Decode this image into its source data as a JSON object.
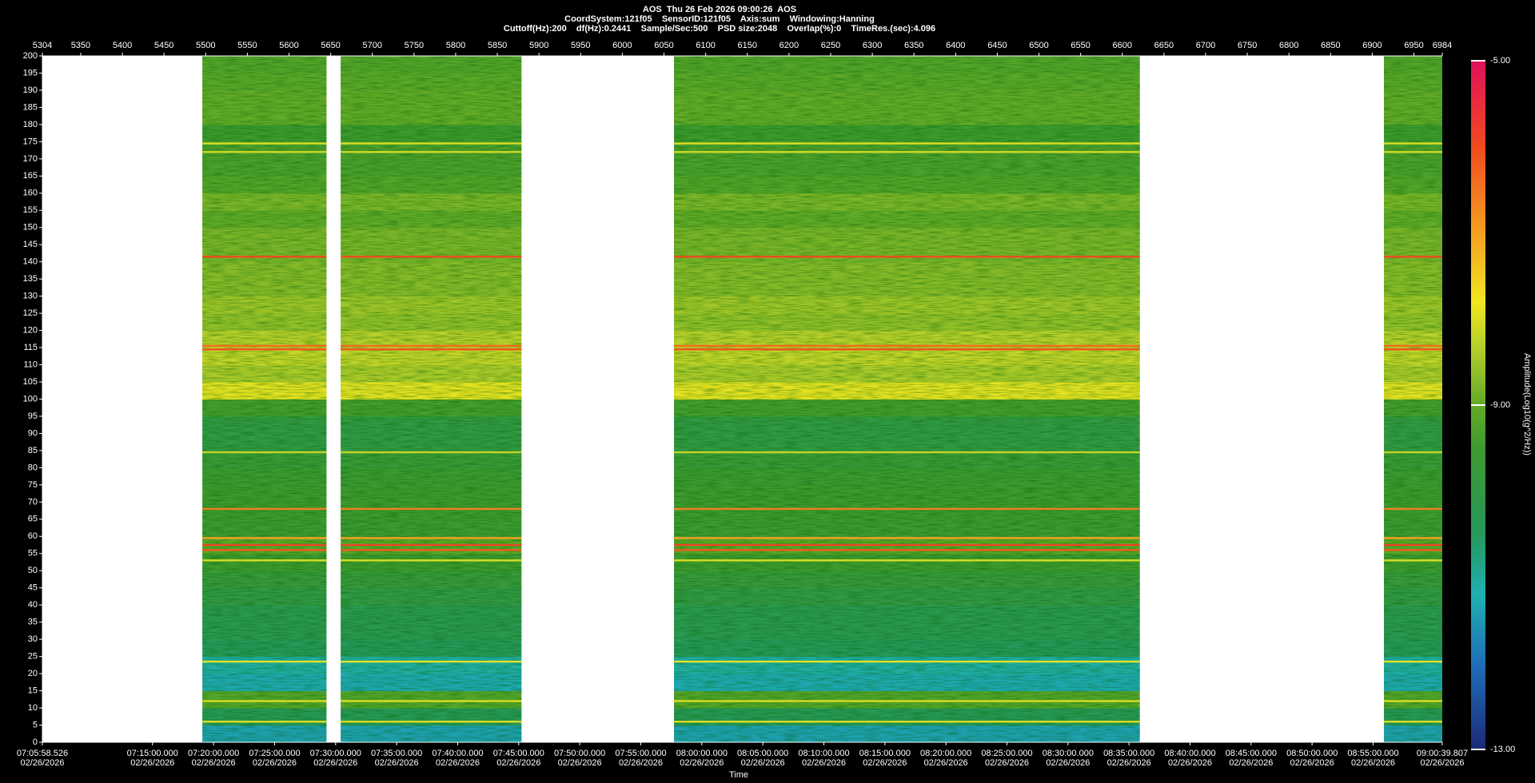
{
  "chart_data": {
    "type": "spectrogram",
    "title": "AOS  Thu 26 Feb 2026 09:00:26  AOS",
    "subtitle": "CoordSystem:121f05    SensorID:121f05    Axis:sum    Windowing:Hanning",
    "info": "Cuttoff(Hz):200    df(Hz):0.2441    Sample/Sec:500    PSD size:2048    Overlap(%):0    TimeRes.(sec):4.096",
    "xlabel": "Time",
    "colorbar_label": "Amplitude(Log10(g^2/Hz))",
    "xlim": [
      5304,
      6984
    ],
    "xticks": [
      5304,
      5350,
      5400,
      5450,
      5500,
      5550,
      5600,
      5650,
      5700,
      5750,
      5800,
      5850,
      5900,
      5950,
      6000,
      6050,
      6100,
      6150,
      6200,
      6250,
      6300,
      6350,
      6400,
      6450,
      6500,
      6550,
      6600,
      6650,
      6700,
      6750,
      6800,
      6850,
      6900,
      6950,
      6984
    ],
    "time_lim": [
      25558.526,
      32439.807
    ],
    "time_ticks": [
      {
        "value": 25558.526,
        "label": "07:05:58.526",
        "date": "02/26/2026"
      },
      {
        "value": 26100,
        "label": "07:15:00.000",
        "date": "02/26/2026"
      },
      {
        "value": 26400,
        "label": "07:20:00.000",
        "date": "02/26/2026"
      },
      {
        "value": 26700,
        "label": "07:25:00.000",
        "date": "02/26/2026"
      },
      {
        "value": 27000,
        "label": "07:30:00.000",
        "date": "02/26/2026"
      },
      {
        "value": 27300,
        "label": "07:35:00.000",
        "date": "02/26/2026"
      },
      {
        "value": 27600,
        "label": "07:40:00.000",
        "date": "02/26/2026"
      },
      {
        "value": 27900,
        "label": "07:45:00.000",
        "date": "02/26/2026"
      },
      {
        "value": 28200,
        "label": "07:50:00.000",
        "date": "02/26/2026"
      },
      {
        "value": 28500,
        "label": "07:55:00.000",
        "date": "02/26/2026"
      },
      {
        "value": 28800,
        "label": "08:00:00.000",
        "date": "02/26/2026"
      },
      {
        "value": 29100,
        "label": "08:05:00.000",
        "date": "02/26/2026"
      },
      {
        "value": 29400,
        "label": "08:10:00.000",
        "date": "02/26/2026"
      },
      {
        "value": 29700,
        "label": "08:15:00.000",
        "date": "02/26/2026"
      },
      {
        "value": 30000,
        "label": "08:20:00.000",
        "date": "02/26/2026"
      },
      {
        "value": 30300,
        "label": "08:25:00.000",
        "date": "02/26/2026"
      },
      {
        "value": 30600,
        "label": "08:30:00.000",
        "date": "02/26/2026"
      },
      {
        "value": 30900,
        "label": "08:35:00.000",
        "date": "02/26/2026"
      },
      {
        "value": 31200,
        "label": "08:40:00.000",
        "date": "02/26/2026"
      },
      {
        "value": 31500,
        "label": "08:45:00.000",
        "date": "02/26/2026"
      },
      {
        "value": 31800,
        "label": "08:50:00.000",
        "date": "02/26/2026"
      },
      {
        "value": 32100,
        "label": "08:55:00.000",
        "date": "02/26/2026"
      },
      {
        "value": 32439.807,
        "label": "09:00:39.807",
        "date": "02/26/2026"
      }
    ],
    "ylim": [
      0,
      200
    ],
    "yticks": [
      0,
      5,
      10,
      15,
      20,
      25,
      30,
      35,
      40,
      45,
      50,
      55,
      60,
      65,
      70,
      75,
      80,
      85,
      90,
      95,
      100,
      105,
      110,
      115,
      120,
      125,
      130,
      135,
      140,
      145,
      150,
      155,
      160,
      165,
      170,
      175,
      180,
      185,
      190,
      195,
      200
    ],
    "clim": [
      -13,
      -5
    ],
    "cticks": [
      {
        "value": -13,
        "label": "-13.00"
      },
      {
        "value": -9,
        "label": "-9.00"
      },
      {
        "value": -5,
        "label": "-5.00"
      }
    ],
    "colormap": [
      {
        "value": -13,
        "color": "#1c2a7a"
      },
      {
        "value": -12,
        "color": "#1f6fb8"
      },
      {
        "value": -11.2,
        "color": "#1fb0b0"
      },
      {
        "value": -10.5,
        "color": "#26985a"
      },
      {
        "value": -9.5,
        "color": "#3e9a2e"
      },
      {
        "value": -9,
        "color": "#62aa28"
      },
      {
        "value": -8.3,
        "color": "#b8d02a"
      },
      {
        "value": -7.8,
        "color": "#f0e620"
      },
      {
        "value": -7,
        "color": "#f5a020"
      },
      {
        "value": -6,
        "color": "#f04a20"
      },
      {
        "value": -5,
        "color": "#e0105a"
      }
    ],
    "data_segments": [
      [
        5496,
        5645
      ],
      [
        5662,
        5879
      ],
      [
        6062,
        6621
      ],
      [
        6914,
        6984
      ]
    ],
    "bands": {
      "bins": [
        0,
        5,
        10,
        15,
        20,
        25,
        30,
        35,
        40,
        45,
        50,
        55,
        60,
        65,
        70,
        75,
        80,
        85,
        90,
        95,
        100,
        105,
        110,
        115,
        120,
        125,
        130,
        135,
        140,
        145,
        150,
        155,
        160,
        165,
        170,
        175,
        180,
        185,
        190,
        195,
        200
      ],
      "values": [
        -11.4,
        -10.4,
        -9.2,
        -11.3,
        -11.1,
        -10.5,
        -10.3,
        -10.3,
        -10,
        -9.8,
        -9.5,
        -9.1,
        -9.6,
        -9.5,
        -9.5,
        -9.6,
        -9.7,
        -10,
        -10,
        -9.4,
        -7.9,
        -8.4,
        -8.2,
        -8.3,
        -8.6,
        -8.5,
        -8.7,
        -8.7,
        -8.8,
        -8.8,
        -9,
        -8.8,
        -9.2,
        -9.3,
        -9.3,
        -9.5,
        -9,
        -9,
        -9.1,
        -9.2
      ]
    },
    "lines": {
      "freqs": [
        6,
        12,
        23.5,
        53,
        56,
        57.5,
        59.5,
        68,
        84.5,
        114.5,
        115.5,
        141.5,
        172,
        174.5
      ],
      "values": [
        -8,
        -8,
        -7.9,
        -8,
        -6.2,
        -5.9,
        -7,
        -6.6,
        -8.2,
        -6.1,
        -6.4,
        -6.0,
        -8.1,
        -8.0
      ]
    }
  }
}
